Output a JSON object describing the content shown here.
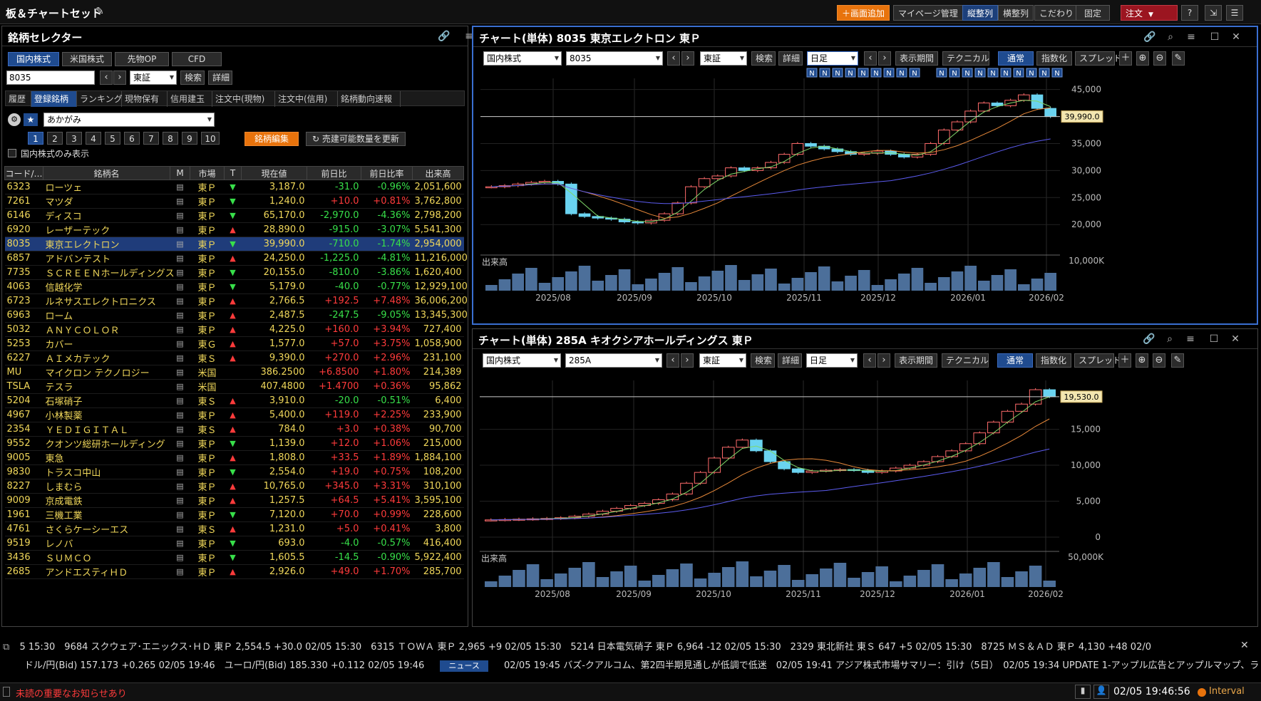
{
  "app_title": "板＆チャートセット",
  "toolbar": {
    "add_screen": "＋画面追加",
    "mypage": "マイページ管理",
    "vertical": "縦整列",
    "horizontal": "横整列",
    "kodawari": "こだわり",
    "settings": "固定",
    "order": "注文",
    "help": "?"
  },
  "selector": {
    "title": "銘柄セレクター",
    "market_tabs": [
      "国内株式",
      "米国株式",
      "先物OP",
      "CFD"
    ],
    "search_value": "8035",
    "exchange": "東証",
    "search_btn": "検索",
    "detail_btn": "詳細",
    "sub_tabs": [
      "履歴",
      "登録銘柄",
      "ランキング",
      "現物保有",
      "信用建玉",
      "注文中(現物)",
      "注文中(信用)",
      "銘柄動向速報"
    ],
    "list_name": "あかがみ",
    "pages": [
      "1",
      "2",
      "3",
      "4",
      "5",
      "6",
      "7",
      "8",
      "9",
      "10"
    ],
    "edit_btn": "銘柄編集",
    "refresh_btn": "売建可能数量を更新",
    "domestic_only": "国内株式のみ表示",
    "columns": [
      "コード/…",
      "銘柄名",
      "M",
      "市場",
      "T",
      "現在値",
      "前日比",
      "前日比率",
      "出来高"
    ],
    "rows": [
      {
        "code": "6323",
        "name": "ローツェ",
        "market": "東Ｐ",
        "trend": "down",
        "price": "3,187.0",
        "chg": "-31.0",
        "pct": "-0.96%",
        "vol": "2,051,600"
      },
      {
        "code": "7261",
        "name": "マツダ",
        "market": "東Ｐ",
        "trend": "down",
        "price": "1,240.0",
        "chg": "+10.0",
        "pct": "+0.81%",
        "vol": "3,762,800"
      },
      {
        "code": "6146",
        "name": "ディスコ",
        "market": "東Ｐ",
        "trend": "down",
        "price": "65,170.0",
        "chg": "-2,970.0",
        "pct": "-4.36%",
        "vol": "2,798,200"
      },
      {
        "code": "6920",
        "name": "レーザーテック",
        "market": "東Ｐ",
        "trend": "up",
        "price": "28,890.0",
        "chg": "-915.0",
        "pct": "-3.07%",
        "vol": "5,541,300"
      },
      {
        "code": "8035",
        "name": "東京エレクトロン",
        "market": "東Ｐ",
        "trend": "down",
        "price": "39,990.0",
        "chg": "-710.0",
        "pct": "-1.74%",
        "vol": "2,954,000"
      },
      {
        "code": "6857",
        "name": "アドバンテスト",
        "market": "東Ｐ",
        "trend": "up",
        "price": "24,250.0",
        "chg": "-1,225.0",
        "pct": "-4.81%",
        "vol": "11,216,000"
      },
      {
        "code": "7735",
        "name": "ＳＣＲＥＥＮホールディングス",
        "market": "東Ｐ",
        "trend": "down",
        "price": "20,155.0",
        "chg": "-810.0",
        "pct": "-3.86%",
        "vol": "1,620,400"
      },
      {
        "code": "4063",
        "name": "信越化学",
        "market": "東Ｐ",
        "trend": "down",
        "price": "5,179.0",
        "chg": "-40.0",
        "pct": "-0.77%",
        "vol": "12,929,100"
      },
      {
        "code": "6723",
        "name": "ルネサスエレクトロニクス",
        "market": "東Ｐ",
        "trend": "up",
        "price": "2,766.5",
        "chg": "+192.5",
        "pct": "+7.48%",
        "vol": "36,006,200"
      },
      {
        "code": "6963",
        "name": "ローム",
        "market": "東Ｐ",
        "trend": "up",
        "price": "2,487.5",
        "chg": "-247.5",
        "pct": "-9.05%",
        "vol": "13,345,300"
      },
      {
        "code": "5032",
        "name": "ＡＮＹＣＯＬＯＲ",
        "market": "東Ｐ",
        "trend": "up",
        "price": "4,225.0",
        "chg": "+160.0",
        "pct": "+3.94%",
        "vol": "727,400"
      },
      {
        "code": "5253",
        "name": "カバー",
        "market": "東Ｇ",
        "trend": "up",
        "price": "1,577.0",
        "chg": "+57.0",
        "pct": "+3.75%",
        "vol": "1,058,900"
      },
      {
        "code": "6227",
        "name": "ＡＩメカテック",
        "market": "東Ｓ",
        "trend": "up",
        "price": "9,390.0",
        "chg": "+270.0",
        "pct": "+2.96%",
        "vol": "231,100"
      },
      {
        "code": "MU",
        "name": "マイクロン テクノロジー",
        "market": "米国",
        "trend": "",
        "price": "386.2500",
        "chg": "+6.8500",
        "pct": "+1.80%",
        "vol": "214,389"
      },
      {
        "code": "TSLA",
        "name": "テスラ",
        "market": "米国",
        "trend": "",
        "price": "407.4800",
        "chg": "+1.4700",
        "pct": "+0.36%",
        "vol": "95,862"
      },
      {
        "code": "5204",
        "name": "石塚硝子",
        "market": "東Ｓ",
        "trend": "up",
        "price": "3,910.0",
        "chg": "-20.0",
        "pct": "-0.51%",
        "vol": "6,400"
      },
      {
        "code": "4967",
        "name": "小林製薬",
        "market": "東Ｐ",
        "trend": "up",
        "price": "5,400.0",
        "chg": "+119.0",
        "pct": "+2.25%",
        "vol": "233,900"
      },
      {
        "code": "2354",
        "name": "ＹＥＤＩＧＩＴＡＬ",
        "market": "東Ｓ",
        "trend": "up",
        "price": "784.0",
        "chg": "+3.0",
        "pct": "+0.38%",
        "vol": "90,700"
      },
      {
        "code": "9552",
        "name": "クオンツ総研ホールディング",
        "market": "東Ｐ",
        "trend": "down",
        "price": "1,139.0",
        "chg": "+12.0",
        "pct": "+1.06%",
        "vol": "215,000"
      },
      {
        "code": "9005",
        "name": "東急",
        "market": "東Ｐ",
        "trend": "up",
        "price": "1,808.0",
        "chg": "+33.5",
        "pct": "+1.89%",
        "vol": "1,884,100"
      },
      {
        "code": "9830",
        "name": "トラスコ中山",
        "market": "東Ｐ",
        "trend": "down",
        "price": "2,554.0",
        "chg": "+19.0",
        "pct": "+0.75%",
        "vol": "108,200"
      },
      {
        "code": "8227",
        "name": "しまむら",
        "market": "東Ｐ",
        "trend": "up",
        "price": "10,765.0",
        "chg": "+345.0",
        "pct": "+3.31%",
        "vol": "310,100"
      },
      {
        "code": "9009",
        "name": "京成電鉄",
        "market": "東Ｐ",
        "trend": "up",
        "price": "1,257.5",
        "chg": "+64.5",
        "pct": "+5.41%",
        "vol": "3,595,100"
      },
      {
        "code": "1961",
        "name": "三機工業",
        "market": "東Ｐ",
        "trend": "down",
        "price": "7,120.0",
        "chg": "+70.0",
        "pct": "+0.99%",
        "vol": "228,600"
      },
      {
        "code": "4761",
        "name": "さくらケーシーエス",
        "market": "東Ｓ",
        "trend": "up",
        "price": "1,231.0",
        "chg": "+5.0",
        "pct": "+0.41%",
        "vol": "3,800"
      },
      {
        "code": "9519",
        "name": "レノバ",
        "market": "東Ｐ",
        "trend": "down",
        "price": "693.0",
        "chg": "-4.0",
        "pct": "-0.57%",
        "vol": "416,400"
      },
      {
        "code": "3436",
        "name": "ＳＵＭＣＯ",
        "market": "東Ｐ",
        "trend": "down",
        "price": "1,605.5",
        "chg": "-14.5",
        "pct": "-0.90%",
        "vol": "5,922,400"
      },
      {
        "code": "2685",
        "name": "アンドエスティＨＤ",
        "market": "東Ｐ",
        "trend": "up",
        "price": "2,926.0",
        "chg": "+49.0",
        "pct": "+1.70%",
        "vol": "285,700"
      }
    ]
  },
  "chart_common": {
    "type_select": "国内株式",
    "exchange": "東証",
    "search_btn": "検索",
    "detail_btn": "詳細",
    "period": "日足",
    "period_btn": "表示期間",
    "technical_btn": "テクニカル",
    "normal_btn": "通常",
    "index_btn": "指数化",
    "spread_btn": "スプレッド",
    "volume_label": "出来高",
    "news_marker": "N",
    "x_ticks": [
      "2025/08",
      "2025/09",
      "2025/10",
      "2025/11",
      "2025/12",
      "2026/01",
      "2026/02"
    ]
  },
  "chart1": {
    "title": "チャート(単体) 8035 東京エレクトロン 東Ｐ",
    "code": "8035",
    "price_label": "39,990.0",
    "y_ticks": [
      "45,000",
      "40,000",
      "35,000",
      "30,000",
      "25,000",
      "20,000"
    ],
    "vol_tick": "10,000K"
  },
  "chart2": {
    "title": "チャート(単体) 285A キオクシアホールディングス 東Ｐ",
    "code": "285A",
    "price_label": "19,530.0",
    "y_ticks": [
      "15,000",
      "10,000",
      "5,000",
      "0"
    ],
    "vol_tick": "50,000K"
  },
  "chart_data": [
    {
      "type": "line",
      "series": [
        {
          "values": [
            27000,
            27200,
            27500,
            27800,
            28000,
            27500,
            22000,
            21500,
            21200,
            21000,
            20500,
            20300,
            20800,
            22000,
            24000,
            27000,
            28500,
            29000,
            30500,
            30000,
            30500,
            31500,
            33000,
            35000,
            34500,
            34000,
            33500,
            33000,
            33200,
            33600,
            33000,
            32500,
            33000,
            35000,
            37500,
            39000,
            41000,
            42500,
            42000,
            43000,
            44000,
            41500,
            39990
          ]
        }
      ],
      "ylim": [
        17000,
        46000
      ]
    },
    {
      "type": "line",
      "series": [
        {
          "values": [
            2400,
            2450,
            2500,
            2550,
            2600,
            2700,
            2900,
            3200,
            3600,
            4000,
            4400,
            4700,
            5200,
            6000,
            7500,
            9000,
            11000,
            12500,
            13500,
            12000,
            10500,
            9500,
            9000,
            9200,
            9300,
            9400,
            9300,
            9000,
            9200,
            9600,
            10000,
            10500,
            11200,
            12000,
            13000,
            14500,
            16000,
            17500,
            18500,
            20500,
            19530
          ]
        }
      ],
      "ylim": [
        0,
        21000
      ]
    }
  ],
  "ticker": {
    "line1": "5 15:30　9684 スクウェア･エニックス･ＨＤ 東Ｐ 2,554.5 +30.0 02/05 15:30　6315 ＴＯＷＡ 東Ｐ 2,965 +9 02/05 15:30　5214 日本電気硝子 東Ｐ 6,964 -12 02/05 15:30　2329 東北新社 東Ｓ 647 +5 02/05 15:30　8725 ＭＳ＆ＡＤ 東Ｐ 4,130 +48 02/0",
    "line2_fx": "ドル/円(Bid) 157.173 +0.265 02/05 19:46　ユーロ/円(Bid) 185.330 +0.112 02/05 19:46",
    "news_label": "ニュース",
    "line2_news": "02/05 19:45 バズ-クアルコム、第2四半期見通しが低調で低迷　02/05 19:41 アジア株式市場サマリー：引け（5日）　02/05 19:34 UPDATE 1-アップル広告とアップルマップ、ラ"
  },
  "status": {
    "notice": "未読の重要なお知らせあり",
    "time": "02/05 19:46:56",
    "interval": "Interval"
  }
}
